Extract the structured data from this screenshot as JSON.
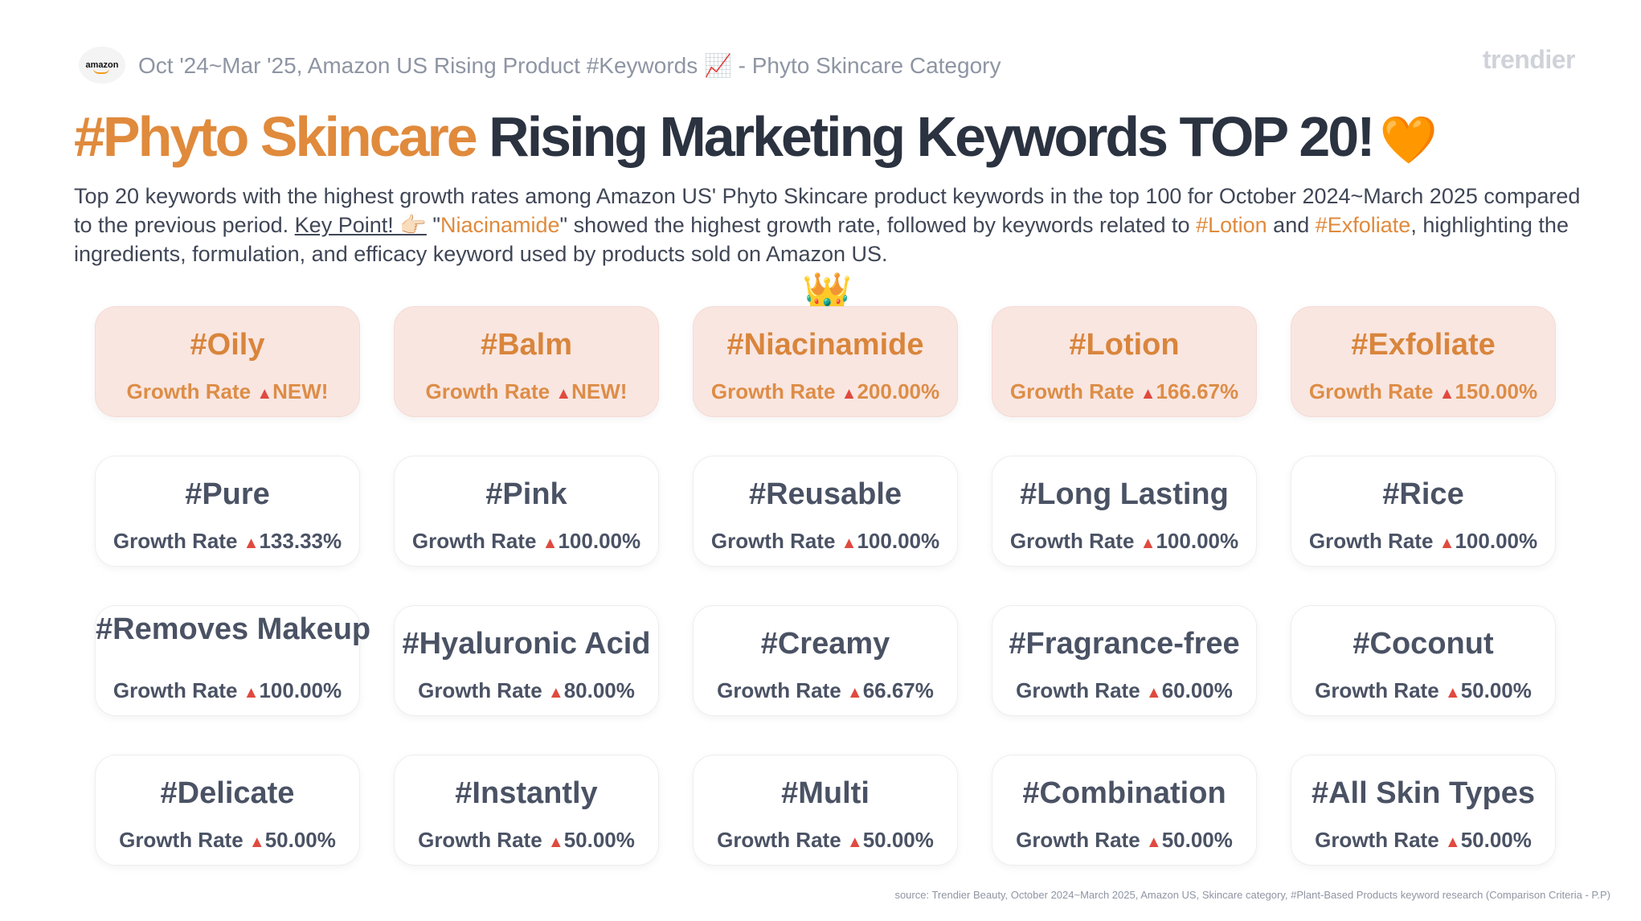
{
  "header": {
    "logo_text": "amazon",
    "subtitle": "Oct '24~Mar '25, Amazon US Rising Product #Keywords 📈 - Phyto Skincare Category",
    "brand": "trendier"
  },
  "title": {
    "accent": "#Phyto Skincare",
    "rest": " Rising Marketing Keywords TOP 20!",
    "heart": "🧡"
  },
  "description": {
    "p1": "Top 20 keywords with the highest growth rates among Amazon US' Phyto Skincare product keywords in the top 100 for October 2024~March 2025 compared to the previous period. ",
    "key_point": "Key Point! 👉🏻",
    "p2": " \"",
    "niacinamide": "Niacinamide",
    "p3": "\" showed the highest growth rate, followed by keywords related to ",
    "lotion": "#Lotion",
    "p4": " and ",
    "exfoliate": "#Exfoliate",
    "p5": ", highlighting the ingredients, formulation, and efficacy keyword used by products sold on Amazon US."
  },
  "crown": "👑",
  "rate_label": "Growth Rate",
  "rate_arrow": "▲",
  "colors": {
    "accent": "#e08a3c",
    "top_card_bg": "#f9e6e1",
    "arrow": "#e04a3f",
    "text": "#4a5264"
  },
  "keywords": [
    {
      "name": "#Oily",
      "rate": "NEW!"
    },
    {
      "name": "#Balm",
      "rate": "NEW!"
    },
    {
      "name": "#Niacinamide",
      "rate": "200.00%"
    },
    {
      "name": "#Lotion",
      "rate": "166.67%"
    },
    {
      "name": "#Exfoliate",
      "rate": "150.00%"
    },
    {
      "name": "#Pure",
      "rate": "133.33%"
    },
    {
      "name": "#Pink",
      "rate": "100.00%"
    },
    {
      "name": "#Reusable",
      "rate": "100.00%"
    },
    {
      "name": "#Long Lasting",
      "rate": "100.00%"
    },
    {
      "name": "#Rice",
      "rate": "100.00%"
    },
    {
      "name": "#Removes Makeup",
      "rate": "100.00%"
    },
    {
      "name": "#Hyaluronic Acid",
      "rate": "80.00%"
    },
    {
      "name": "#Creamy",
      "rate": "66.67%"
    },
    {
      "name": "#Fragrance-free",
      "rate": "60.00%"
    },
    {
      "name": "#Coconut",
      "rate": "50.00%"
    },
    {
      "name": "#Delicate",
      "rate": "50.00%"
    },
    {
      "name": "#Instantly",
      "rate": "50.00%"
    },
    {
      "name": "#Multi",
      "rate": "50.00%"
    },
    {
      "name": "#Combination",
      "rate": "50.00%"
    },
    {
      "name": "#All Skin Types",
      "rate": "50.00%"
    }
  ],
  "source": "source: Trendier Beauty, October 2024~March 2025, Amazon US, Skincare category, #Plant-Based Products keyword research (Comparison Criteria - P.P)"
}
